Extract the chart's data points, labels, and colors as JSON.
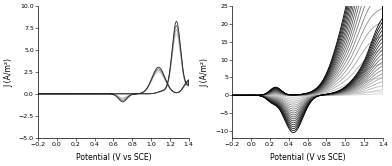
{
  "left": {
    "xlabel": "Potential (V vs SCE)",
    "ylabel": "J (A/m²)",
    "xlim": [
      -0.2,
      1.4
    ],
    "ylim": [
      -5.0,
      10.0
    ],
    "yticks": [
      -5.0,
      -2.5,
      0.0,
      2.5,
      5.0,
      7.5,
      10.0
    ],
    "xticks": [
      -0.2,
      0.0,
      0.2,
      0.4,
      0.6,
      0.8,
      1.0,
      1.2,
      1.4
    ],
    "n_cycles": 4,
    "colors": [
      "#c8c8c8",
      "#a0a0a0",
      "#686868",
      "#282828"
    ]
  },
  "right": {
    "xlabel": "Potential (V vs SCE)",
    "ylabel": "J (A/m²)",
    "xlim": [
      -0.2,
      1.4
    ],
    "ylim": [
      -12.0,
      25.0
    ],
    "yticks": [
      -10,
      -5,
      0,
      5,
      10,
      15,
      20,
      25
    ],
    "xticks": [
      -0.2,
      0.0,
      0.2,
      0.4,
      0.6,
      0.8,
      1.0,
      1.2,
      1.4
    ],
    "n_cycles": 20
  }
}
